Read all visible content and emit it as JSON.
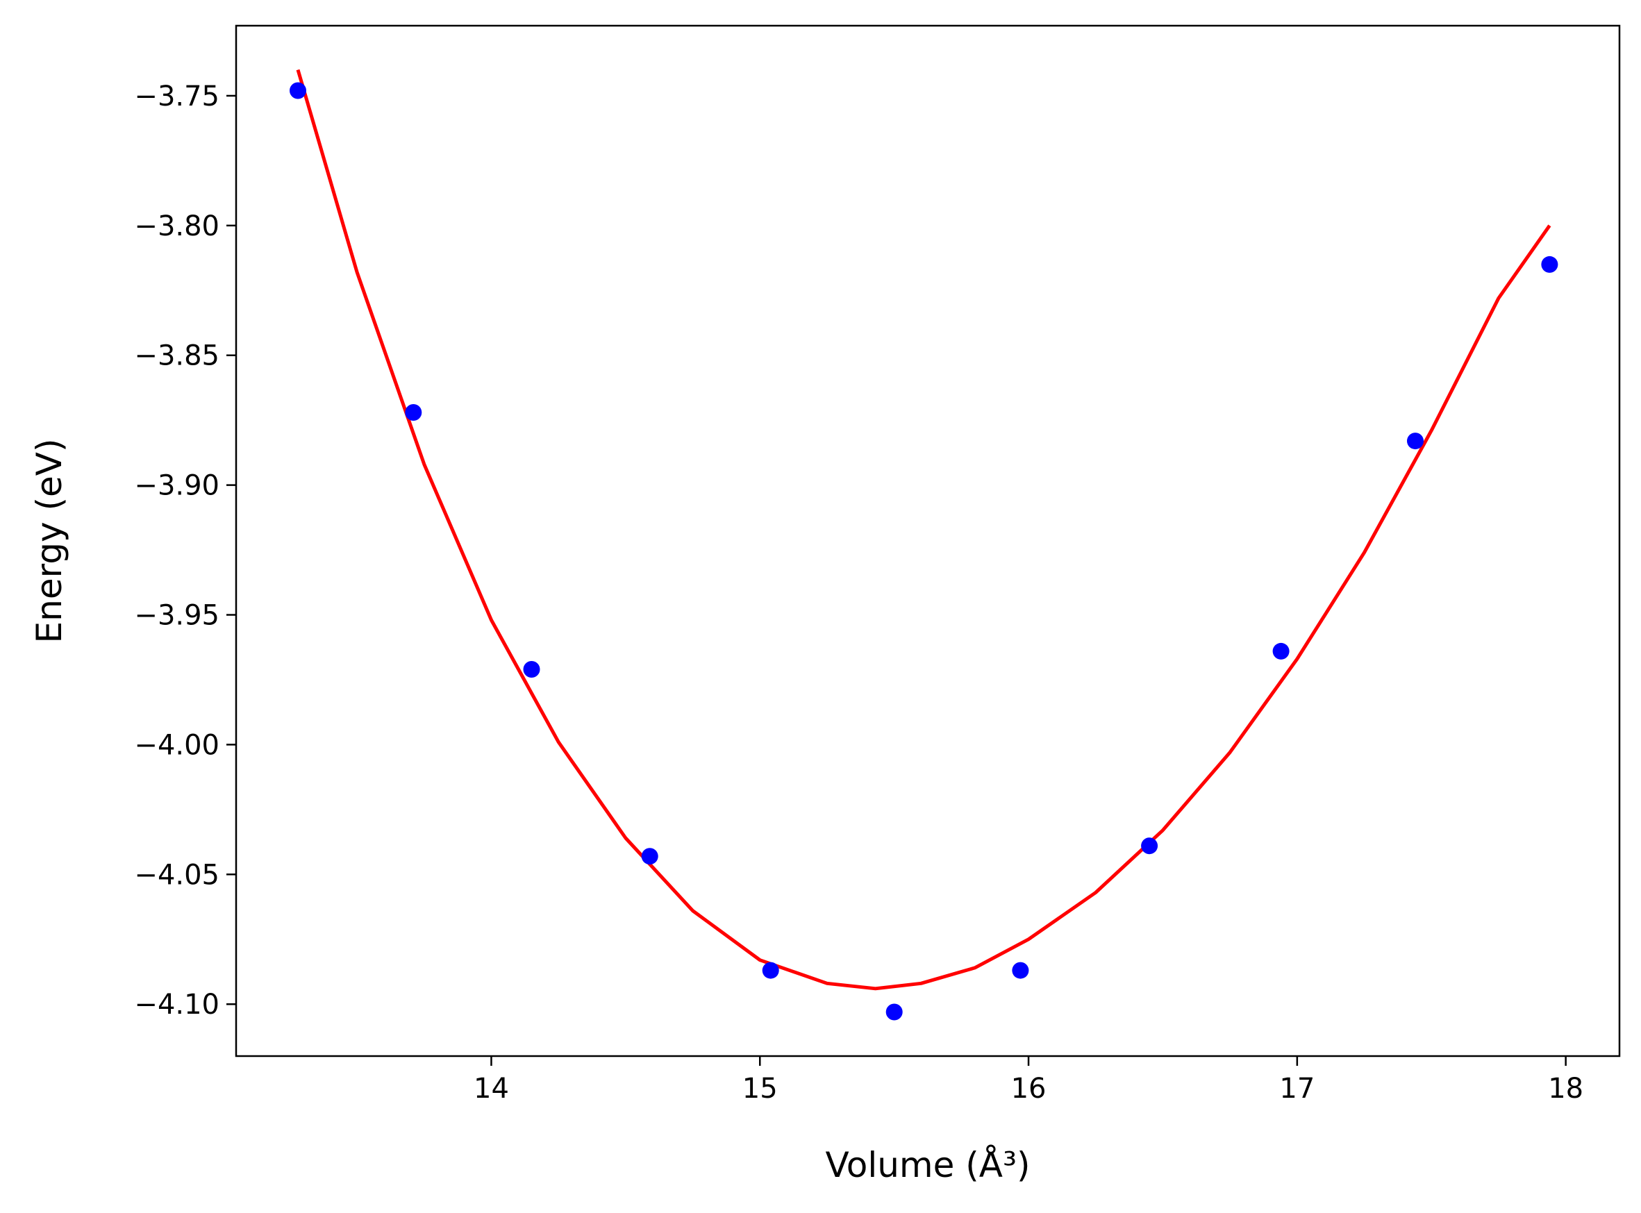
{
  "chart_data": {
    "type": "scatter",
    "xlabel": "Volume (Å³)",
    "ylabel": "Energy (eV)",
    "xlim": [
      13.05,
      18.2
    ],
    "ylim": [
      -4.12,
      -3.723
    ],
    "x_ticks": [
      14,
      15,
      16,
      17,
      18
    ],
    "y_ticks": [
      -3.75,
      -3.8,
      -3.85,
      -3.9,
      -3.95,
      -4.0,
      -4.05,
      -4.1
    ],
    "x_tick_labels": [
      "14",
      "15",
      "16",
      "17",
      "18"
    ],
    "y_tick_labels": [
      "−3.75",
      "−3.80",
      "−3.85",
      "−3.90",
      "−3.95",
      "−4.00",
      "−4.05",
      "−4.10"
    ],
    "grid": false,
    "series": [
      {
        "kind": "scatter",
        "color": "#0000ff",
        "x": [
          13.28,
          13.71,
          14.15,
          14.59,
          15.04,
          15.5,
          15.97,
          16.45,
          16.94,
          17.44,
          17.94
        ],
        "y": [
          -3.748,
          -3.872,
          -3.971,
          -4.043,
          -4.087,
          -4.103,
          -4.087,
          -4.039,
          -3.964,
          -3.883,
          -3.815
        ]
      },
      {
        "kind": "line",
        "color": "#ff0000",
        "x": [
          13.28,
          13.5,
          13.75,
          14.0,
          14.25,
          14.5,
          14.75,
          15.0,
          15.25,
          15.43,
          15.6,
          15.8,
          16.0,
          16.25,
          16.5,
          16.75,
          17.0,
          17.25,
          17.5,
          17.75,
          17.94
        ],
        "y": [
          -3.74,
          -3.818,
          -3.892,
          -3.952,
          -3.999,
          -4.036,
          -4.064,
          -4.083,
          -4.092,
          -4.094,
          -4.092,
          -4.086,
          -4.075,
          -4.057,
          -4.033,
          -4.003,
          -3.967,
          -3.926,
          -3.879,
          -3.828,
          -3.8
        ]
      }
    ]
  }
}
